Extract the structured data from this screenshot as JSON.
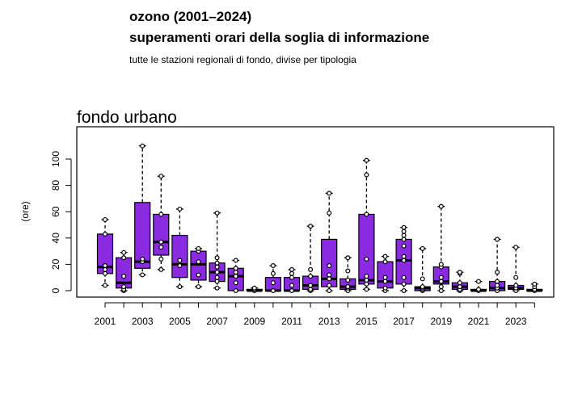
{
  "header": {
    "title_line1": "ozono (2001–2024)",
    "title_line2": "superamenti orari della soglia di informazione",
    "subtitle": "tutte le stazioni regionali di fondo, divise per tipologia"
  },
  "chart_data": {
    "type": "box",
    "panel_title": "fondo urbano",
    "ylabel": "(ore)",
    "xlabel": "",
    "ylim": [
      -5,
      120
    ],
    "yticks": [
      0,
      20,
      40,
      60,
      80,
      100
    ],
    "xtick_labels": [
      "2001",
      "2003",
      "2005",
      "2007",
      "2009",
      "2011",
      "2013",
      "2015",
      "2017",
      "2019",
      "2021",
      "2023"
    ],
    "box_color": "#8a2be2",
    "boxes": [
      {
        "year": "2001",
        "min": 4,
        "q1": 13,
        "median": 18,
        "q3": 43,
        "max": 54,
        "points": [
          4,
          13,
          16,
          19,
          43,
          54
        ]
      },
      {
        "year": "2002",
        "min": 0,
        "q1": 2,
        "median": 6,
        "q3": 25,
        "max": 29,
        "points": [
          0,
          1,
          3,
          11,
          25,
          29
        ]
      },
      {
        "year": "2003",
        "min": 12,
        "q1": 17,
        "median": 22,
        "q3": 67,
        "max": 110,
        "points": [
          12,
          22,
          24,
          110
        ]
      },
      {
        "year": "2004",
        "min": 16,
        "q1": 27,
        "median": 37,
        "q3": 58,
        "max": 87,
        "points": [
          16,
          24,
          33,
          37,
          58,
          87
        ]
      },
      {
        "year": "2005",
        "min": 3,
        "q1": 10,
        "median": 20,
        "q3": 42,
        "max": 62,
        "points": [
          3,
          19,
          23,
          62
        ]
      },
      {
        "year": "2006",
        "min": 3,
        "q1": 8,
        "median": 20,
        "q3": 30,
        "max": 32,
        "points": [
          3,
          12,
          22,
          30,
          32
        ]
      },
      {
        "year": "2007",
        "min": 2,
        "q1": 7,
        "median": 14,
        "q3": 21,
        "max": 59,
        "points": [
          2,
          7,
          10,
          14,
          18,
          21,
          25,
          59
        ]
      },
      {
        "year": "2008",
        "min": 0,
        "q1": 0,
        "median": 11,
        "q3": 17,
        "max": 23,
        "points": [
          0,
          6,
          11,
          14,
          17,
          23
        ]
      },
      {
        "year": "2009",
        "min": 0,
        "q1": 0,
        "median": 0,
        "q3": 1,
        "max": 2,
        "points": [
          0,
          1,
          2
        ]
      },
      {
        "year": "2010",
        "min": 0,
        "q1": 0,
        "median": 0,
        "q3": 10,
        "max": 19,
        "points": [
          0,
          6,
          13,
          19
        ]
      },
      {
        "year": "2011",
        "min": 0,
        "q1": 0,
        "median": 0,
        "q3": 10,
        "max": 16,
        "points": [
          0,
          4,
          10,
          13,
          16
        ]
      },
      {
        "year": "2012",
        "min": 0,
        "q1": 1,
        "median": 4,
        "q3": 11,
        "max": 49,
        "points": [
          0,
          1,
          4,
          11,
          16,
          49
        ]
      },
      {
        "year": "2013",
        "min": 0,
        "q1": 3,
        "median": 9,
        "q3": 39,
        "max": 74,
        "points": [
          0,
          4,
          9,
          12,
          19,
          59,
          74
        ]
      },
      {
        "year": "2014",
        "min": 0,
        "q1": 1,
        "median": 3,
        "q3": 9,
        "max": 25,
        "points": [
          0,
          2,
          3,
          8,
          15,
          25
        ]
      },
      {
        "year": "2015",
        "min": 1,
        "q1": 5,
        "median": 8,
        "q3": 58,
        "max": 99,
        "points": [
          1,
          5,
          8,
          11,
          24,
          58,
          88,
          99
        ]
      },
      {
        "year": "2016",
        "min": 0,
        "q1": 2,
        "median": 7,
        "q3": 22,
        "max": 26,
        "points": [
          0,
          2,
          7,
          10,
          22,
          26
        ]
      },
      {
        "year": "2017",
        "min": 0,
        "q1": 5,
        "median": 23,
        "q3": 39,
        "max": 48,
        "points": [
          0,
          5,
          10,
          23,
          26,
          34,
          39,
          42,
          45,
          48
        ]
      },
      {
        "year": "2018",
        "min": 0,
        "q1": 0,
        "median": 2,
        "q3": 3,
        "max": 32,
        "points": [
          0,
          1,
          2,
          3,
          9,
          32
        ]
      },
      {
        "year": "2019",
        "min": 0,
        "q1": 5,
        "median": 7,
        "q3": 18,
        "max": 64,
        "points": [
          0,
          3,
          7,
          10,
          18,
          20,
          64
        ]
      },
      {
        "year": "2020",
        "min": 0,
        "q1": 1,
        "median": 3,
        "q3": 6,
        "max": 14,
        "points": [
          0,
          1,
          3,
          6,
          13,
          14
        ]
      },
      {
        "year": "2021",
        "min": 0,
        "q1": 0,
        "median": 0,
        "q3": 1,
        "max": 7,
        "points": [
          0,
          1,
          7
        ]
      },
      {
        "year": "2022",
        "min": 0,
        "q1": 0,
        "median": 2,
        "q3": 7,
        "max": 39,
        "points": [
          0,
          2,
          4,
          7,
          14,
          39
        ]
      },
      {
        "year": "2023",
        "min": 0,
        "q1": 1,
        "median": 2,
        "q3": 4,
        "max": 33,
        "points": [
          0,
          2,
          4,
          10,
          33
        ]
      },
      {
        "year": "2024",
        "min": 0,
        "q1": 0,
        "median": 0,
        "q3": 1,
        "max": 5,
        "points": [
          0,
          1,
          3,
          5
        ]
      }
    ]
  }
}
